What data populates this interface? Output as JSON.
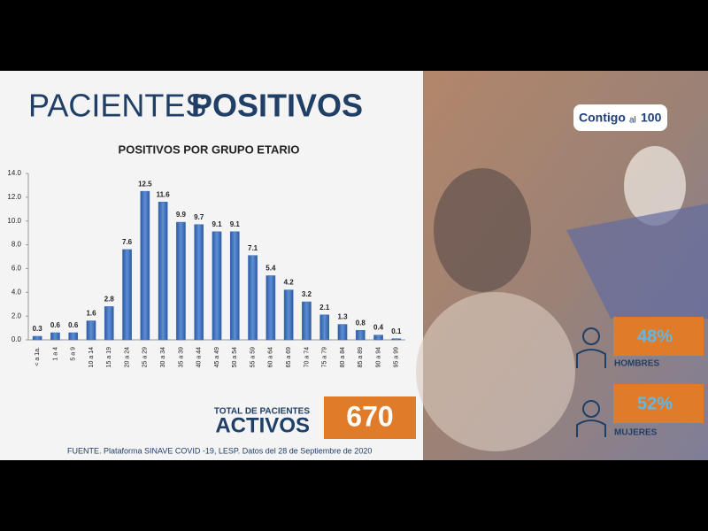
{
  "header": {
    "title_light": "PACIENTES",
    "title_bold": "POSITIVOS"
  },
  "chart_data": {
    "type": "bar",
    "title": "POSITIVOS POR GRUPO ETARIO",
    "categories": [
      "< a 1a.",
      "1 a 4",
      "5 a 9",
      "10 a 14",
      "15 a 19",
      "20 a 24",
      "25 a 29",
      "30 a 34",
      "35 a 39",
      "40 a 44",
      "45 a 49",
      "50 a 54",
      "55 a 59",
      "60 a 64",
      "65 a 69",
      "70 a 74",
      "75 a 79",
      "80 a 84",
      "85 a 89",
      "90 a 94",
      "95 a 99"
    ],
    "values": [
      0.3,
      0.6,
      0.6,
      1.6,
      2.8,
      7.6,
      12.5,
      11.6,
      9.9,
      9.7,
      9.1,
      9.1,
      7.1,
      5.4,
      4.2,
      3.2,
      2.1,
      1.3,
      0.8,
      0.4,
      0.1
    ],
    "color": "#3b6cb4",
    "ylim": [
      0,
      14
    ],
    "yticks": [
      {
        "value": 0,
        "label": "0.0"
      },
      {
        "value": 2,
        "label": "2.0"
      },
      {
        "value": 4,
        "label": "4.0"
      },
      {
        "value": 6,
        "label": "6.0"
      },
      {
        "value": 8,
        "label": "8.0"
      },
      {
        "value": 10,
        "label": "10.0"
      },
      {
        "value": 12,
        "label": "12.0"
      },
      {
        "value": 14,
        "label": "14.0"
      }
    ],
    "grid": false
  },
  "total": {
    "label_top": "TOTAL DE PACIENTES",
    "label_bottom": "ACTIVOS",
    "value": "670"
  },
  "logo": {
    "word": "Contigo",
    "small": "al",
    "number": "100"
  },
  "stats": [
    {
      "value": "48%",
      "label": "HOMBRES"
    },
    {
      "value": "52%",
      "label": "MUJERES"
    }
  ],
  "footer": "FUENTE. Plataforma SINAVE COVID -19, LESP. Datos del 28 de Septiembre de 2020"
}
